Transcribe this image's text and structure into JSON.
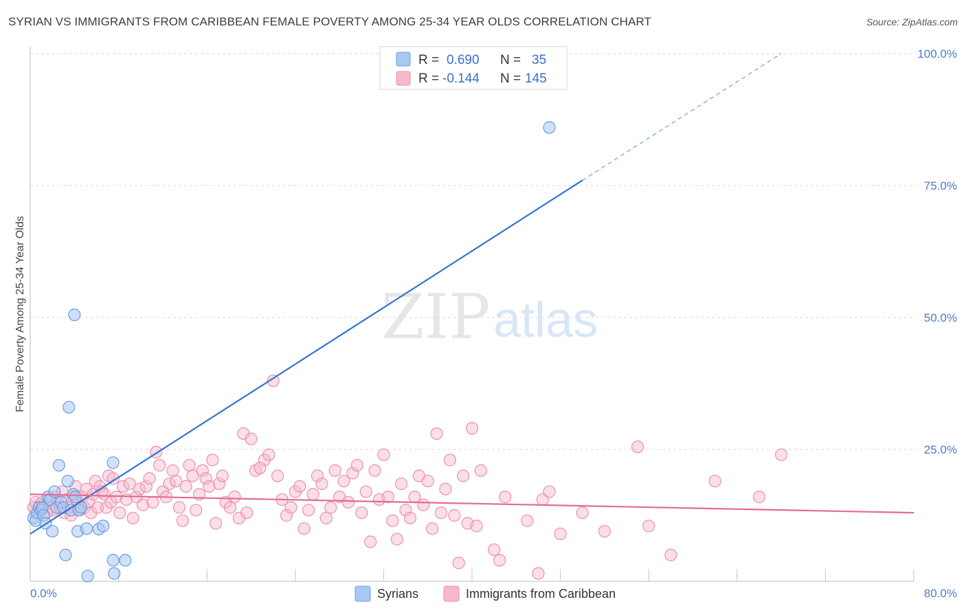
{
  "title": "SYRIAN VS IMMIGRANTS FROM CARIBBEAN FEMALE POVERTY AMONG 25-34 YEAR OLDS CORRELATION CHART",
  "source": "Source: ZipAtlas.com",
  "watermark": {
    "zip": "ZIP",
    "atlas": "atlas"
  },
  "colors": {
    "syrian_fill": "#a9c8f0",
    "syrian_stroke": "#6b9be0",
    "syrian_line": "#2f74d0",
    "carib_fill": "#f7b8cb",
    "carib_stroke": "#ec8fae",
    "carib_line": "#e56a96",
    "grid": "#d8d8d8",
    "tick_label": "#4a7ac9"
  },
  "legend": {
    "rows": [
      {
        "r_label": "R =",
        "r_value": "0.690",
        "n_label": "N =",
        "n_value": "35"
      },
      {
        "r_label": "R =",
        "r_value": "-0.144",
        "n_label": "N =",
        "n_value": "145"
      }
    ]
  },
  "bottom_legend": {
    "syrians": "Syrians",
    "caribbean": "Immigrants from Caribbean"
  },
  "chart_data": {
    "type": "scatter",
    "title": "SYRIAN VS IMMIGRANTS FROM CARIBBEAN FEMALE POVERTY AMONG 25-34 YEAR OLDS CORRELATION CHART",
    "xlabel": "",
    "ylabel": "Female Poverty Among 25-34 Year Olds",
    "xlim": [
      0,
      80
    ],
    "ylim": [
      0,
      100
    ],
    "x_tick_labels": [
      "0.0%",
      "80.0%"
    ],
    "y_ticks": [
      25,
      50,
      75,
      100
    ],
    "y_tick_labels": [
      "25.0%",
      "50.0%",
      "75.0%",
      "100.0%"
    ],
    "series": [
      {
        "name": "Syrians",
        "r": 0.69,
        "n": 35,
        "trend": {
          "x0": 0,
          "y0": 9,
          "x1": 50,
          "y1": 76,
          "dashed_to_x": 68,
          "dashed_to_y": 100
        },
        "points": [
          [
            0.3,
            12
          ],
          [
            0.5,
            11.5
          ],
          [
            0.6,
            13
          ],
          [
            0.8,
            14
          ],
          [
            1,
            13.5
          ],
          [
            1.1,
            14
          ],
          [
            1.2,
            12.5
          ],
          [
            1.4,
            11
          ],
          [
            1.6,
            16
          ],
          [
            1.8,
            15.5
          ],
          [
            2,
            9.5
          ],
          [
            2.2,
            17
          ],
          [
            2.4,
            14
          ],
          [
            2.6,
            22
          ],
          [
            2.8,
            15
          ],
          [
            3,
            14
          ],
          [
            3.2,
            5
          ],
          [
            3.4,
            19
          ],
          [
            3.5,
            33
          ],
          [
            3.7,
            13.5
          ],
          [
            3.9,
            16.5
          ],
          [
            4.1,
            16
          ],
          [
            4.3,
            9.5
          ],
          [
            4.4,
            13.5
          ],
          [
            4.6,
            14
          ],
          [
            5.1,
            10
          ],
          [
            6.2,
            9.9
          ],
          [
            6.6,
            10.5
          ],
          [
            7.5,
            4
          ],
          [
            7.6,
            1.5
          ],
          [
            8.6,
            4
          ],
          [
            5.2,
            1
          ],
          [
            4.0,
            50.5
          ],
          [
            7.5,
            22.5
          ],
          [
            47,
            86
          ]
        ]
      },
      {
        "name": "Immigrants from Caribbean",
        "r": -0.144,
        "n": 145,
        "trend": {
          "x0": 0,
          "y0": 16.5,
          "x1": 80,
          "y1": 13
        },
        "points": [
          [
            0.3,
            14
          ],
          [
            0.5,
            15
          ],
          [
            0.7,
            13
          ],
          [
            0.9,
            14.5
          ],
          [
            1.1,
            15
          ],
          [
            1.3,
            14
          ],
          [
            1.5,
            13
          ],
          [
            1.7,
            15.5
          ],
          [
            1.9,
            14
          ],
          [
            2.1,
            13.5
          ],
          [
            2.3,
            16
          ],
          [
            2.5,
            15
          ],
          [
            2.7,
            14
          ],
          [
            2.9,
            17
          ],
          [
            3.1,
            13
          ],
          [
            3.3,
            15.5
          ],
          [
            3.5,
            14
          ],
          [
            3.7,
            12.5
          ],
          [
            3.9,
            16
          ],
          [
            4.1,
            18
          ],
          [
            4.3,
            15
          ],
          [
            4.5,
            13.5
          ],
          [
            4.7,
            16
          ],
          [
            4.9,
            14
          ],
          [
            5.1,
            17.5
          ],
          [
            5.3,
            15
          ],
          [
            5.5,
            13
          ],
          [
            5.7,
            16.5
          ],
          [
            5.9,
            19
          ],
          [
            6.1,
            14
          ],
          [
            6.3,
            18
          ],
          [
            6.5,
            17
          ],
          [
            6.7,
            16.5
          ],
          [
            6.9,
            14
          ],
          [
            7.1,
            20
          ],
          [
            7.3,
            15
          ],
          [
            7.5,
            19.5
          ],
          [
            7.8,
            16
          ],
          [
            8.1,
            13
          ],
          [
            8.4,
            18
          ],
          [
            8.7,
            15.5
          ],
          [
            9,
            18.5
          ],
          [
            9.3,
            12
          ],
          [
            9.6,
            16
          ],
          [
            9.9,
            17.5
          ],
          [
            10.2,
            14.5
          ],
          [
            10.5,
            18
          ],
          [
            10.8,
            19.5
          ],
          [
            11.1,
            15
          ],
          [
            11.4,
            24.5
          ],
          [
            11.7,
            22
          ],
          [
            12,
            17
          ],
          [
            12.3,
            16
          ],
          [
            12.6,
            18.5
          ],
          [
            12.9,
            21
          ],
          [
            13.2,
            19
          ],
          [
            13.5,
            14
          ],
          [
            13.8,
            11.5
          ],
          [
            14.1,
            18
          ],
          [
            14.4,
            22
          ],
          [
            14.7,
            20
          ],
          [
            15,
            13.5
          ],
          [
            15.3,
            16.5
          ],
          [
            15.6,
            21
          ],
          [
            15.9,
            19.5
          ],
          [
            16.2,
            18
          ],
          [
            16.5,
            23
          ],
          [
            16.8,
            11
          ],
          [
            17.1,
            18.5
          ],
          [
            17.4,
            20
          ],
          [
            17.7,
            15
          ],
          [
            18.1,
            14
          ],
          [
            18.5,
            16
          ],
          [
            18.9,
            12
          ],
          [
            19.3,
            28
          ],
          [
            19.6,
            13
          ],
          [
            20,
            27
          ],
          [
            20.4,
            21
          ],
          [
            20.8,
            21.5
          ],
          [
            21.2,
            23
          ],
          [
            21.6,
            24
          ],
          [
            22,
            38
          ],
          [
            22.4,
            20
          ],
          [
            22.8,
            15.5
          ],
          [
            23.2,
            12.5
          ],
          [
            23.6,
            14
          ],
          [
            24,
            17
          ],
          [
            24.4,
            18
          ],
          [
            24.8,
            10
          ],
          [
            25.2,
            13.5
          ],
          [
            25.6,
            16.5
          ],
          [
            26,
            20
          ],
          [
            26.4,
            18.5
          ],
          [
            26.8,
            12
          ],
          [
            27.2,
            14
          ],
          [
            27.6,
            21
          ],
          [
            28,
            16
          ],
          [
            28.4,
            19
          ],
          [
            28.8,
            15
          ],
          [
            29.2,
            20.5
          ],
          [
            29.6,
            22
          ],
          [
            30,
            13
          ],
          [
            30.4,
            17
          ],
          [
            30.8,
            7.5
          ],
          [
            31.2,
            21
          ],
          [
            31.6,
            15.5
          ],
          [
            32,
            24
          ],
          [
            32.4,
            16
          ],
          [
            32.8,
            11.5
          ],
          [
            33.2,
            8
          ],
          [
            33.6,
            18.5
          ],
          [
            34,
            13.5
          ],
          [
            34.4,
            12
          ],
          [
            34.8,
            16
          ],
          [
            35.2,
            20
          ],
          [
            35.6,
            14.5
          ],
          [
            36,
            19
          ],
          [
            36.4,
            10
          ],
          [
            36.8,
            28
          ],
          [
            37.2,
            13
          ],
          [
            37.6,
            17.5
          ],
          [
            38,
            23
          ],
          [
            38.4,
            12.5
          ],
          [
            38.8,
            3.5
          ],
          [
            39.2,
            20
          ],
          [
            39.6,
            11
          ],
          [
            40,
            29
          ],
          [
            40.4,
            10.5
          ],
          [
            40.8,
            21
          ],
          [
            42,
            6
          ],
          [
            42.5,
            4
          ],
          [
            43,
            16
          ],
          [
            45,
            11.5
          ],
          [
            46,
            1.5
          ],
          [
            46.4,
            15.5
          ],
          [
            47,
            17
          ],
          [
            48,
            9
          ],
          [
            50,
            13
          ],
          [
            52,
            9.5
          ],
          [
            55,
            25.5
          ],
          [
            56,
            10.5
          ],
          [
            58,
            5
          ],
          [
            62,
            19
          ],
          [
            66,
            16
          ],
          [
            68,
            24
          ]
        ]
      }
    ]
  }
}
